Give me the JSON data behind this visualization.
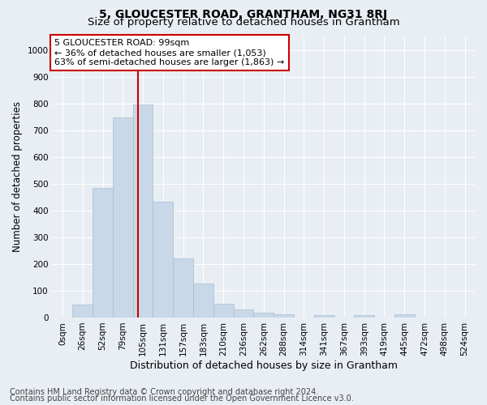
{
  "title": "5, GLOUCESTER ROAD, GRANTHAM, NG31 8RJ",
  "subtitle": "Size of property relative to detached houses in Grantham",
  "xlabel": "Distribution of detached houses by size in Grantham",
  "ylabel": "Number of detached properties",
  "bar_labels": [
    "0sqm",
    "26sqm",
    "52sqm",
    "79sqm",
    "105sqm",
    "131sqm",
    "157sqm",
    "183sqm",
    "210sqm",
    "236sqm",
    "262sqm",
    "288sqm",
    "314sqm",
    "341sqm",
    "367sqm",
    "393sqm",
    "419sqm",
    "445sqm",
    "472sqm",
    "498sqm",
    "524sqm"
  ],
  "bar_values": [
    0,
    47,
    483,
    748,
    795,
    432,
    222,
    128,
    50,
    30,
    18,
    12,
    0,
    10,
    0,
    10,
    0,
    12,
    0,
    0,
    0
  ],
  "bar_color": "#c8d8e8",
  "bar_edge_color": "#a8bece",
  "background_color": "#e8eef4",
  "grid_color": "#ffffff",
  "marker_color": "#cc0000",
  "annotation_text": "5 GLOUCESTER ROAD: 99sqm\n← 36% of detached houses are smaller (1,053)\n63% of semi-detached houses are larger (1,863) →",
  "annotation_box_color": "#ffffff",
  "annotation_border_color": "#cc0000",
  "ylim": [
    0,
    1050
  ],
  "yticks": [
    0,
    100,
    200,
    300,
    400,
    500,
    600,
    700,
    800,
    900,
    1000
  ],
  "footer_line1": "Contains HM Land Registry data © Crown copyright and database right 2024.",
  "footer_line2": "Contains public sector information licensed under the Open Government Licence v3.0.",
  "title_fontsize": 10,
  "subtitle_fontsize": 9.5,
  "xlabel_fontsize": 9,
  "ylabel_fontsize": 8.5,
  "tick_fontsize": 7.5,
  "annotation_fontsize": 8,
  "footer_fontsize": 7
}
